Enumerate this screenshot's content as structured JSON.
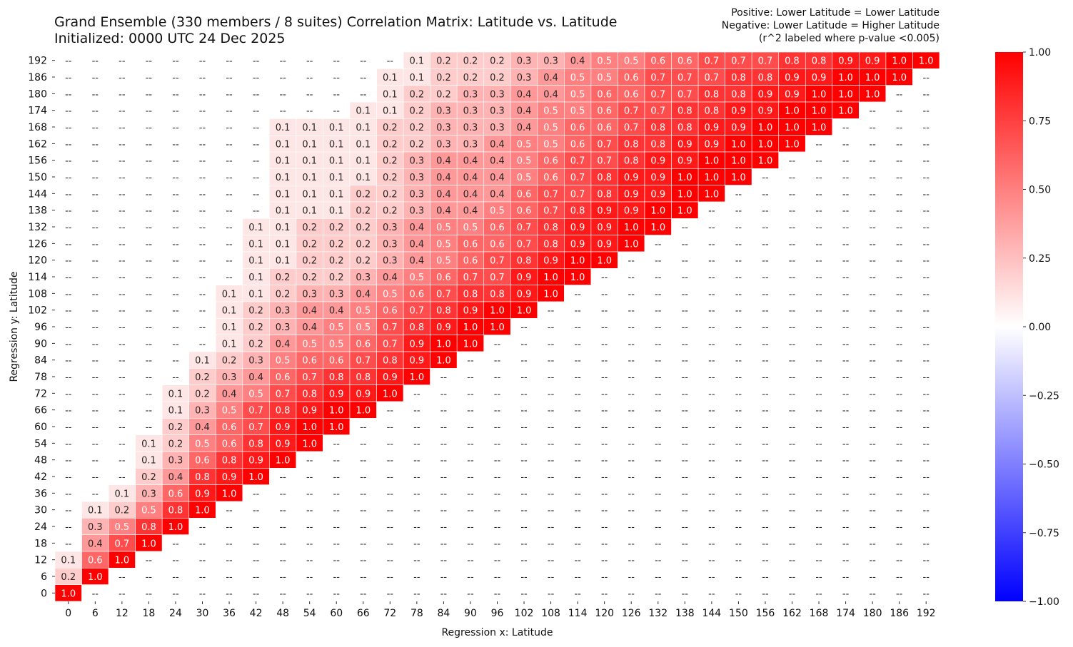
{
  "chart_data": {
    "type": "heatmap",
    "title": "Grand Ensemble (330 members / 8 suites) Correlation Matrix: Latitude vs. Latitude",
    "subtitle": "Initialized: 0000 UTC 24 Dec 2025",
    "notes": [
      "Positive: Lower Latitude = Lower Latitude",
      "Negative: Lower Latitude = Higher Latitude",
      "(r^2 labeled where p-value <0.005)"
    ],
    "xlabel": "Regression x: Latitude",
    "ylabel": "Regression y: Latitude",
    "x": [
      0,
      6,
      12,
      18,
      24,
      30,
      36,
      42,
      48,
      54,
      60,
      66,
      72,
      78,
      84,
      90,
      96,
      102,
      108,
      114,
      120,
      126,
      132,
      138,
      144,
      150,
      156,
      162,
      168,
      174,
      180,
      186,
      192
    ],
    "y": [
      192,
      186,
      180,
      174,
      168,
      162,
      156,
      150,
      144,
      138,
      132,
      126,
      120,
      114,
      108,
      102,
      96,
      90,
      84,
      78,
      72,
      66,
      60,
      54,
      48,
      42,
      36,
      30,
      24,
      18,
      12,
      6,
      0
    ],
    "missing_label": "--",
    "labels": [
      [
        "--",
        "--",
        "--",
        "--",
        "--",
        "--",
        "--",
        "--",
        "--",
        "--",
        "--",
        "--",
        "--",
        "0.1",
        "0.2",
        "0.2",
        "0.2",
        "0.3",
        "0.3",
        "0.4",
        "0.5",
        "0.5",
        "0.6",
        "0.6",
        "0.7",
        "0.7",
        "0.7",
        "0.8",
        "0.8",
        "0.9",
        "0.9",
        "1.0",
        "1.0"
      ],
      [
        "--",
        "--",
        "--",
        "--",
        "--",
        "--",
        "--",
        "--",
        "--",
        "--",
        "--",
        "--",
        "0.1",
        "0.1",
        "0.2",
        "0.2",
        "0.2",
        "0.3",
        "0.4",
        "0.5",
        "0.5",
        "0.6",
        "0.7",
        "0.7",
        "0.7",
        "0.8",
        "0.8",
        "0.9",
        "0.9",
        "1.0",
        "1.0",
        "1.0",
        "--"
      ],
      [
        "--",
        "--",
        "--",
        "--",
        "--",
        "--",
        "--",
        "--",
        "--",
        "--",
        "--",
        "--",
        "0.1",
        "0.2",
        "0.2",
        "0.3",
        "0.3",
        "0.4",
        "0.4",
        "0.5",
        "0.6",
        "0.6",
        "0.7",
        "0.7",
        "0.8",
        "0.8",
        "0.9",
        "0.9",
        "1.0",
        "1.0",
        "1.0",
        "--",
        "--"
      ],
      [
        "--",
        "--",
        "--",
        "--",
        "--",
        "--",
        "--",
        "--",
        "--",
        "--",
        "--",
        "0.1",
        "0.1",
        "0.2",
        "0.3",
        "0.3",
        "0.3",
        "0.4",
        "0.5",
        "0.5",
        "0.6",
        "0.7",
        "0.7",
        "0.8",
        "0.8",
        "0.9",
        "0.9",
        "1.0",
        "1.0",
        "1.0",
        "--",
        "--",
        "--"
      ],
      [
        "--",
        "--",
        "--",
        "--",
        "--",
        "--",
        "--",
        "--",
        "0.1",
        "0.1",
        "0.1",
        "0.1",
        "0.2",
        "0.2",
        "0.3",
        "0.3",
        "0.3",
        "0.4",
        "0.5",
        "0.6",
        "0.6",
        "0.7",
        "0.8",
        "0.8",
        "0.9",
        "0.9",
        "1.0",
        "1.0",
        "1.0",
        "--",
        "--",
        "--",
        "--"
      ],
      [
        "--",
        "--",
        "--",
        "--",
        "--",
        "--",
        "--",
        "--",
        "0.1",
        "0.1",
        "0.1",
        "0.1",
        "0.2",
        "0.2",
        "0.3",
        "0.3",
        "0.4",
        "0.5",
        "0.5",
        "0.6",
        "0.7",
        "0.8",
        "0.8",
        "0.9",
        "0.9",
        "1.0",
        "1.0",
        "1.0",
        "--",
        "--",
        "--",
        "--",
        "--"
      ],
      [
        "--",
        "--",
        "--",
        "--",
        "--",
        "--",
        "--",
        "--",
        "0.1",
        "0.1",
        "0.1",
        "0.1",
        "0.2",
        "0.3",
        "0.4",
        "0.4",
        "0.4",
        "0.5",
        "0.6",
        "0.7",
        "0.7",
        "0.8",
        "0.9",
        "0.9",
        "1.0",
        "1.0",
        "1.0",
        "--",
        "--",
        "--",
        "--",
        "--",
        "--"
      ],
      [
        "--",
        "--",
        "--",
        "--",
        "--",
        "--",
        "--",
        "--",
        "0.1",
        "0.1",
        "0.1",
        "0.1",
        "0.2",
        "0.3",
        "0.4",
        "0.4",
        "0.4",
        "0.5",
        "0.6",
        "0.7",
        "0.8",
        "0.9",
        "0.9",
        "1.0",
        "1.0",
        "1.0",
        "--",
        "--",
        "--",
        "--",
        "--",
        "--",
        "--"
      ],
      [
        "--",
        "--",
        "--",
        "--",
        "--",
        "--",
        "--",
        "--",
        "0.1",
        "0.1",
        "0.1",
        "0.2",
        "0.2",
        "0.3",
        "0.4",
        "0.4",
        "0.4",
        "0.6",
        "0.7",
        "0.7",
        "0.8",
        "0.9",
        "0.9",
        "1.0",
        "1.0",
        "--",
        "--",
        "--",
        "--",
        "--",
        "--",
        "--",
        "--"
      ],
      [
        "--",
        "--",
        "--",
        "--",
        "--",
        "--",
        "--",
        "--",
        "0.1",
        "0.1",
        "0.1",
        "0.2",
        "0.2",
        "0.3",
        "0.4",
        "0.4",
        "0.5",
        "0.6",
        "0.7",
        "0.8",
        "0.9",
        "0.9",
        "1.0",
        "1.0",
        "--",
        "--",
        "--",
        "--",
        "--",
        "--",
        "--",
        "--",
        "--"
      ],
      [
        "--",
        "--",
        "--",
        "--",
        "--",
        "--",
        "--",
        "0.1",
        "0.1",
        "0.2",
        "0.2",
        "0.2",
        "0.3",
        "0.4",
        "0.5",
        "0.5",
        "0.6",
        "0.7",
        "0.8",
        "0.9",
        "0.9",
        "1.0",
        "1.0",
        "--",
        "--",
        "--",
        "--",
        "--",
        "--",
        "--",
        "--",
        "--",
        "--"
      ],
      [
        "--",
        "--",
        "--",
        "--",
        "--",
        "--",
        "--",
        "0.1",
        "0.1",
        "0.2",
        "0.2",
        "0.2",
        "0.3",
        "0.4",
        "0.5",
        "0.6",
        "0.6",
        "0.7",
        "0.8",
        "0.9",
        "0.9",
        "1.0",
        "--",
        "--",
        "--",
        "--",
        "--",
        "--",
        "--",
        "--",
        "--",
        "--",
        "--"
      ],
      [
        "--",
        "--",
        "--",
        "--",
        "--",
        "--",
        "--",
        "0.1",
        "0.1",
        "0.2",
        "0.2",
        "0.2",
        "0.3",
        "0.4",
        "0.5",
        "0.6",
        "0.7",
        "0.8",
        "0.9",
        "1.0",
        "1.0",
        "--",
        "--",
        "--",
        "--",
        "--",
        "--",
        "--",
        "--",
        "--",
        "--",
        "--",
        "--"
      ],
      [
        "--",
        "--",
        "--",
        "--",
        "--",
        "--",
        "--",
        "0.1",
        "0.2",
        "0.2",
        "0.2",
        "0.3",
        "0.4",
        "0.5",
        "0.6",
        "0.7",
        "0.7",
        "0.9",
        "1.0",
        "1.0",
        "--",
        "--",
        "--",
        "--",
        "--",
        "--",
        "--",
        "--",
        "--",
        "--",
        "--",
        "--",
        "--"
      ],
      [
        "--",
        "--",
        "--",
        "--",
        "--",
        "--",
        "0.1",
        "0.1",
        "0.2",
        "0.3",
        "0.3",
        "0.4",
        "0.5",
        "0.6",
        "0.7",
        "0.8",
        "0.8",
        "0.9",
        "1.0",
        "--",
        "--",
        "--",
        "--",
        "--",
        "--",
        "--",
        "--",
        "--",
        "--",
        "--",
        "--",
        "--",
        "--"
      ],
      [
        "--",
        "--",
        "--",
        "--",
        "--",
        "--",
        "0.1",
        "0.2",
        "0.3",
        "0.4",
        "0.4",
        "0.5",
        "0.6",
        "0.7",
        "0.8",
        "0.9",
        "1.0",
        "1.0",
        "--",
        "--",
        "--",
        "--",
        "--",
        "--",
        "--",
        "--",
        "--",
        "--",
        "--",
        "--",
        "--",
        "--",
        "--"
      ],
      [
        "--",
        "--",
        "--",
        "--",
        "--",
        "--",
        "0.1",
        "0.2",
        "0.3",
        "0.4",
        "0.5",
        "0.5",
        "0.7",
        "0.8",
        "0.9",
        "1.0",
        "1.0",
        "--",
        "--",
        "--",
        "--",
        "--",
        "--",
        "--",
        "--",
        "--",
        "--",
        "--",
        "--",
        "--",
        "--",
        "--",
        "--"
      ],
      [
        "--",
        "--",
        "--",
        "--",
        "--",
        "--",
        "0.1",
        "0.2",
        "0.4",
        "0.5",
        "0.5",
        "0.6",
        "0.7",
        "0.9",
        "1.0",
        "1.0",
        "--",
        "--",
        "--",
        "--",
        "--",
        "--",
        "--",
        "--",
        "--",
        "--",
        "--",
        "--",
        "--",
        "--",
        "--",
        "--",
        "--"
      ],
      [
        "--",
        "--",
        "--",
        "--",
        "--",
        "0.1",
        "0.2",
        "0.3",
        "0.5",
        "0.6",
        "0.6",
        "0.7",
        "0.8",
        "0.9",
        "1.0",
        "--",
        "--",
        "--",
        "--",
        "--",
        "--",
        "--",
        "--",
        "--",
        "--",
        "--",
        "--",
        "--",
        "--",
        "--",
        "--",
        "--",
        "--"
      ],
      [
        "--",
        "--",
        "--",
        "--",
        "--",
        "0.2",
        "0.3",
        "0.4",
        "0.6",
        "0.7",
        "0.8",
        "0.8",
        "0.9",
        "1.0",
        "--",
        "--",
        "--",
        "--",
        "--",
        "--",
        "--",
        "--",
        "--",
        "--",
        "--",
        "--",
        "--",
        "--",
        "--",
        "--",
        "--",
        "--",
        "--"
      ],
      [
        "--",
        "--",
        "--",
        "--",
        "0.1",
        "0.2",
        "0.4",
        "0.5",
        "0.7",
        "0.8",
        "0.9",
        "0.9",
        "1.0",
        "--",
        "--",
        "--",
        "--",
        "--",
        "--",
        "--",
        "--",
        "--",
        "--",
        "--",
        "--",
        "--",
        "--",
        "--",
        "--",
        "--",
        "--",
        "--",
        "--"
      ],
      [
        "--",
        "--",
        "--",
        "--",
        "0.1",
        "0.3",
        "0.5",
        "0.7",
        "0.8",
        "0.9",
        "1.0",
        "1.0",
        "--",
        "--",
        "--",
        "--",
        "--",
        "--",
        "--",
        "--",
        "--",
        "--",
        "--",
        "--",
        "--",
        "--",
        "--",
        "--",
        "--",
        "--",
        "--",
        "--",
        "--"
      ],
      [
        "--",
        "--",
        "--",
        "--",
        "0.2",
        "0.4",
        "0.6",
        "0.7",
        "0.9",
        "1.0",
        "1.0",
        "--",
        "--",
        "--",
        "--",
        "--",
        "--",
        "--",
        "--",
        "--",
        "--",
        "--",
        "--",
        "--",
        "--",
        "--",
        "--",
        "--",
        "--",
        "--",
        "--",
        "--",
        "--"
      ],
      [
        "--",
        "--",
        "--",
        "0.1",
        "0.2",
        "0.5",
        "0.6",
        "0.8",
        "0.9",
        "1.0",
        "--",
        "--",
        "--",
        "--",
        "--",
        "--",
        "--",
        "--",
        "--",
        "--",
        "--",
        "--",
        "--",
        "--",
        "--",
        "--",
        "--",
        "--",
        "--",
        "--",
        "--",
        "--",
        "--"
      ],
      [
        "--",
        "--",
        "--",
        "0.1",
        "0.3",
        "0.6",
        "0.8",
        "0.9",
        "1.0",
        "--",
        "--",
        "--",
        "--",
        "--",
        "--",
        "--",
        "--",
        "--",
        "--",
        "--",
        "--",
        "--",
        "--",
        "--",
        "--",
        "--",
        "--",
        "--",
        "--",
        "--",
        "--",
        "--",
        "--"
      ],
      [
        "--",
        "--",
        "--",
        "0.2",
        "0.4",
        "0.8",
        "0.9",
        "1.0",
        "--",
        "--",
        "--",
        "--",
        "--",
        "--",
        "--",
        "--",
        "--",
        "--",
        "--",
        "--",
        "--",
        "--",
        "--",
        "--",
        "--",
        "--",
        "--",
        "--",
        "--",
        "--",
        "--",
        "--",
        "--"
      ],
      [
        "--",
        "--",
        "0.1",
        "0.3",
        "0.6",
        "0.9",
        "1.0",
        "--",
        "--",
        "--",
        "--",
        "--",
        "--",
        "--",
        "--",
        "--",
        "--",
        "--",
        "--",
        "--",
        "--",
        "--",
        "--",
        "--",
        "--",
        "--",
        "--",
        "--",
        "--",
        "--",
        "--",
        "--",
        "--"
      ],
      [
        "--",
        "0.1",
        "0.2",
        "0.5",
        "0.8",
        "1.0",
        "--",
        "--",
        "--",
        "--",
        "--",
        "--",
        "--",
        "--",
        "--",
        "--",
        "--",
        "--",
        "--",
        "--",
        "--",
        "--",
        "--",
        "--",
        "--",
        "--",
        "--",
        "--",
        "--",
        "--",
        "--",
        "--",
        "--"
      ],
      [
        "--",
        "0.3",
        "0.5",
        "0.8",
        "1.0",
        "--",
        "--",
        "--",
        "--",
        "--",
        "--",
        "--",
        "--",
        "--",
        "--",
        "--",
        "--",
        "--",
        "--",
        "--",
        "--",
        "--",
        "--",
        "--",
        "--",
        "--",
        "--",
        "--",
        "--",
        "--",
        "--",
        "--",
        "--"
      ],
      [
        "--",
        "0.4",
        "0.7",
        "1.0",
        "--",
        "--",
        "--",
        "--",
        "--",
        "--",
        "--",
        "--",
        "--",
        "--",
        "--",
        "--",
        "--",
        "--",
        "--",
        "--",
        "--",
        "--",
        "--",
        "--",
        "--",
        "--",
        "--",
        "--",
        "--",
        "--",
        "--",
        "--",
        "--"
      ],
      [
        "0.1",
        "0.6",
        "1.0",
        "--",
        "--",
        "--",
        "--",
        "--",
        "--",
        "--",
        "--",
        "--",
        "--",
        "--",
        "--",
        "--",
        "--",
        "--",
        "--",
        "--",
        "--",
        "--",
        "--",
        "--",
        "--",
        "--",
        "--",
        "--",
        "--",
        "--",
        "--",
        "--",
        "--"
      ],
      [
        "0.2",
        "1.0",
        "--",
        "--",
        "--",
        "--",
        "--",
        "--",
        "--",
        "--",
        "--",
        "--",
        "--",
        "--",
        "--",
        "--",
        "--",
        "--",
        "--",
        "--",
        "--",
        "--",
        "--",
        "--",
        "--",
        "--",
        "--",
        "--",
        "--",
        "--",
        "--",
        "--",
        "--"
      ],
      [
        "1.0",
        "--",
        "--",
        "--",
        "--",
        "--",
        "--",
        "--",
        "--",
        "--",
        "--",
        "--",
        "--",
        "--",
        "--",
        "--",
        "--",
        "--",
        "--",
        "--",
        "--",
        "--",
        "--",
        "--",
        "--",
        "--",
        "--",
        "--",
        "--",
        "--",
        "--",
        "--",
        "--"
      ]
    ],
    "colorbar": {
      "vmin": -1.0,
      "vmax": 1.0,
      "ticks": [
        "1.00",
        "0.75",
        "0.50",
        "0.25",
        "0.00",
        "−0.25",
        "−0.50",
        "−0.75",
        "−1.00"
      ],
      "colormap": "bwr",
      "colors": {
        "low": "#0000ff",
        "mid": "#ffffff",
        "high": "#ff0000"
      }
    },
    "grid": false,
    "legend": "colorbar-right"
  }
}
